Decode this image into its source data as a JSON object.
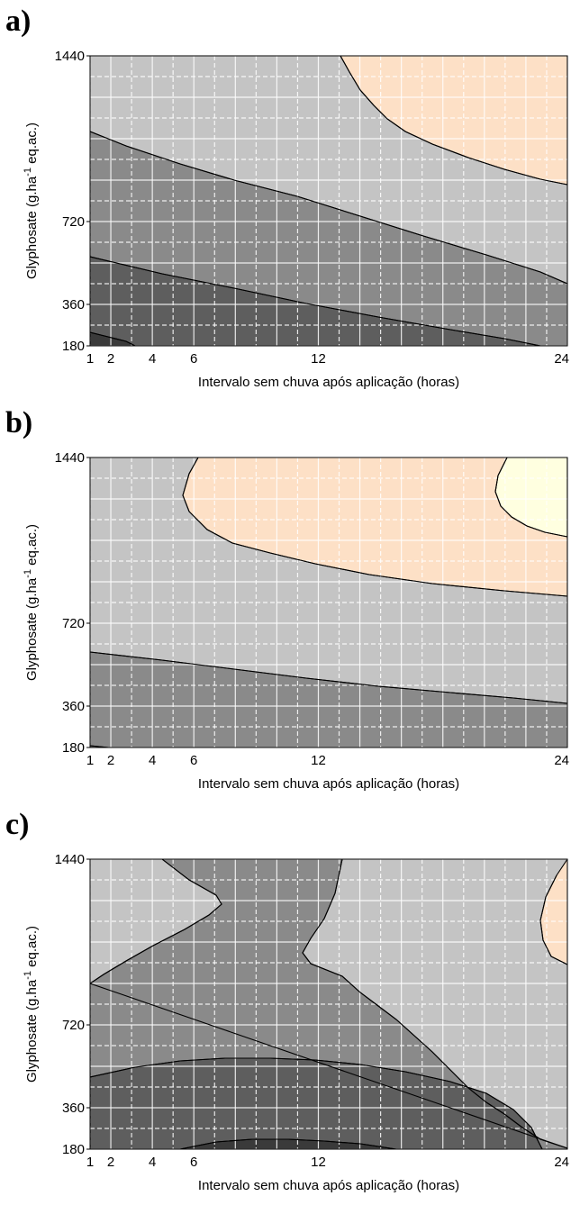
{
  "chart_data": [
    {
      "type": "heatmap",
      "panel_label": "a)",
      "xlabel": "Intervalo sem chuva após aplicação (horas)",
      "ylabel": "Glyphosate (g.ha-1 eq.ac.)",
      "ylabel_main": "Glyphosate (g.ha",
      "ylabel_sup": "-1",
      "ylabel_tail": " eq.ac.)",
      "xlim": [
        1,
        24
      ],
      "ylim": [
        180,
        1440
      ],
      "x_ticks": [
        1,
        2,
        4,
        6,
        12,
        24
      ],
      "y_ticks": [
        180,
        360,
        720,
        1440
      ],
      "grid": true,
      "colors": {
        "level1": "#3a3a3a",
        "level2": "#5e5e5e",
        "level3": "#8a8a8a",
        "level4": "#c4c4c4",
        "level5": "#fde0c6",
        "level6": "#ffffe0"
      }
    },
    {
      "type": "heatmap",
      "panel_label": "b)",
      "xlabel": "Intervalo sem chuva após aplicação (horas)",
      "ylabel": "Glyphosate (g.ha-1 eq.ac.)",
      "ylabel_main": "Glyphosate (g.ha",
      "ylabel_sup": "-1",
      "ylabel_tail": " eq.ac.)",
      "xlim": [
        1,
        24
      ],
      "ylim": [
        180,
        1440
      ],
      "x_ticks": [
        1,
        2,
        4,
        6,
        12,
        24
      ],
      "y_ticks": [
        180,
        360,
        720,
        1440
      ],
      "grid": true,
      "colors": {
        "level1": "#3a3a3a",
        "level2": "#5e5e5e",
        "level3": "#8a8a8a",
        "level4": "#c4c4c4",
        "level5": "#fde0c6",
        "level6": "#ffffe0"
      }
    },
    {
      "type": "heatmap",
      "panel_label": "c)",
      "xlabel": "Intervalo sem chuva após aplicação (horas)",
      "ylabel": "Glyphosate (g.ha-1 eq.ac.)",
      "ylabel_main": "Glyphosate (g.ha",
      "ylabel_sup": "-1",
      "ylabel_tail": " eq.ac.)",
      "xlim": [
        1,
        24
      ],
      "ylim": [
        180,
        1440
      ],
      "x_ticks": [
        1,
        2,
        4,
        6,
        12,
        24
      ],
      "y_ticks": [
        180,
        360,
        720,
        1440
      ],
      "grid": true,
      "colors": {
        "level1": "#3a3a3a",
        "level2": "#5e5e5e",
        "level3": "#8a8a8a",
        "level4": "#c4c4c4",
        "level5": "#fde0c6",
        "level6": "#ffffe0"
      }
    }
  ]
}
